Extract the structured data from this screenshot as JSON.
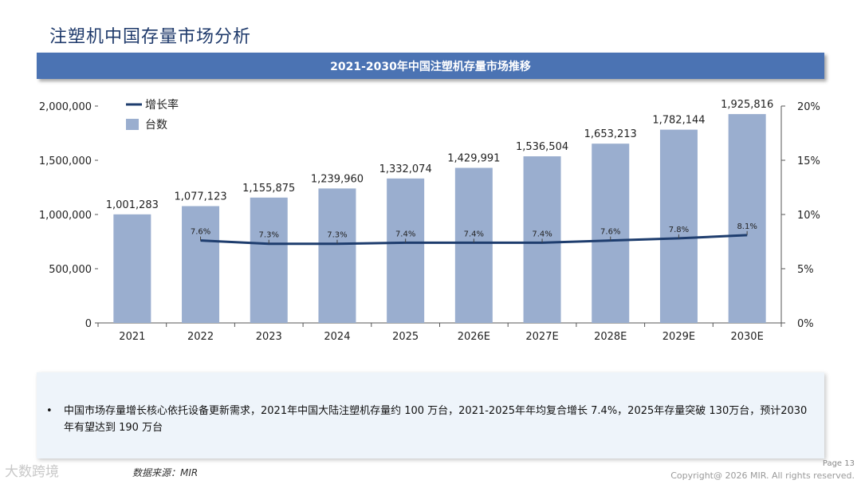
{
  "page": {
    "title": "注塑机中国存量市场分析",
    "page_number": "Page 13",
    "copyright": "Copyright@ 2026 MIR. All rights reserved.",
    "source": "数据来源：MIR",
    "watermark": "大数跨境"
  },
  "chart_data": {
    "type": "bar",
    "title": "2021-2030年中国注塑机存量市场推移",
    "categories": [
      "2021",
      "2022",
      "2023",
      "2024",
      "2025",
      "2026E",
      "2027E",
      "2028E",
      "2029E",
      "2030E"
    ],
    "series": [
      {
        "name": "台数",
        "type": "bar",
        "axis": "left",
        "values": [
          1001283,
          1077123,
          1155875,
          1239960,
          1332074,
          1429991,
          1536504,
          1653213,
          1782144,
          1925816
        ],
        "labels": [
          "1,001,283",
          "1,077,123",
          "1,155,875",
          "1,239,960",
          "1,332,074",
          "1,429,991",
          "1,536,504",
          "1,653,213",
          "1,782,144",
          "1,925,816"
        ]
      },
      {
        "name": "增长率",
        "type": "line",
        "axis": "right",
        "values": [
          null,
          7.6,
          7.3,
          7.3,
          7.4,
          7.4,
          7.4,
          7.6,
          7.8,
          8.1
        ],
        "labels": [
          "",
          "7.6%",
          "7.3%",
          "7.3%",
          "7.4%",
          "7.4%",
          "7.4%",
          "7.6%",
          "7.8%",
          "8.1%"
        ]
      }
    ],
    "y_left": {
      "min": 0,
      "max": 2000000,
      "ticks": [
        "0",
        "500,000",
        "1,000,000",
        "1,500,000",
        "2,000,000"
      ]
    },
    "y_right": {
      "min": 0,
      "max": 20,
      "ticks": [
        "0%",
        "5%",
        "10%",
        "15%",
        "20%"
      ]
    },
    "legend": [
      {
        "name": "增长率",
        "kind": "line"
      },
      {
        "name": "台数",
        "kind": "bar"
      }
    ],
    "legend_position": "top-left",
    "grid": false
  },
  "note": {
    "bullet": "•",
    "text": "中国市场存量增长核心依托设备更新需求，2021年中国大陆注塑机存量约 100 万台，2021-2025年年均复合增长 7.4%，2025年存量突破 130万台，预计2030 年有望达到 190 万台"
  },
  "colors": {
    "bar": "#9aaecf",
    "line": "#1e3d6e",
    "banner": "#4b73b3",
    "title": "#1f3a6b"
  }
}
